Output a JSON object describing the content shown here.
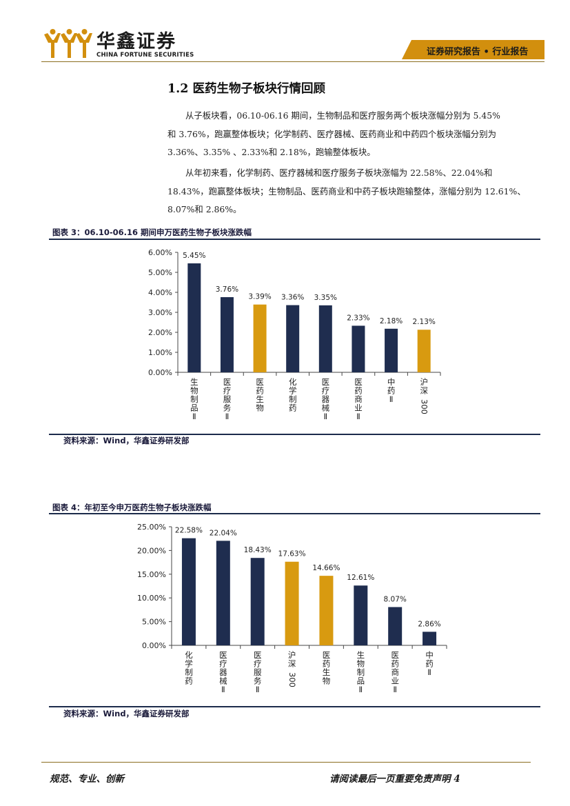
{
  "header": {
    "brand_cn": "华鑫证券",
    "brand_en": "CHINA FORTUNE SECURITIES",
    "report_type": "证券研究报告 • 行业报告",
    "accent_color": "#d28f0e"
  },
  "section": {
    "title": "1.2 医药生物子板块行情回顾",
    "para1_lines": [
      "从子板块看，06.10-06.16 期间，生物制品和医疗服务两个板块涨幅分别为 5.45%",
      "和 3.76%，跑赢整体板块；化学制药、医疗器械、医药商业和中药四个板块涨幅分别为",
      "3.36%、3.35% 、2.33%和 2.18%，跑输整体板块。"
    ],
    "para2_lines": [
      "从年初来看，化学制药、医疗器械和医疗服务子板块涨幅为 22.58%、22.04%和",
      "18.43%，跑赢整体板块；生物制品、医药商业和中药子板块跑输整体，涨幅分别为 12.61%、",
      "8.07%和 2.86%。"
    ]
  },
  "figure3": {
    "title": "图表 3：06.10-06.16 期间申万医药生物子板块涨跌幅",
    "source": "资料来源：Wind，华鑫证券研发部"
  },
  "figure4": {
    "title": "图表 4：年初至今申万医药生物子板块涨跌幅",
    "source": "资料来源：Wind，华鑫证券研发部"
  },
  "chart_data": [
    {
      "type": "bar",
      "categories": [
        "生物制品Ⅱ",
        "医疗服务Ⅱ",
        "医药生物",
        "化学制药",
        "医疗器械Ⅱ",
        "医药商业Ⅱ",
        "中药Ⅱ",
        "沪深300"
      ],
      "values": [
        5.45,
        3.76,
        3.39,
        3.36,
        3.35,
        2.33,
        2.18,
        2.13
      ],
      "value_labels": [
        "5.45%",
        "3.76%",
        "3.39%",
        "3.36%",
        "3.35%",
        "2.33%",
        "2.18%",
        "2.13%"
      ],
      "highlight": [
        false,
        false,
        true,
        false,
        false,
        false,
        false,
        true
      ],
      "ylim": [
        0,
        6
      ],
      "yticks": [
        0,
        1,
        2,
        3,
        4,
        5,
        6
      ],
      "ytick_labels": [
        "0.00%",
        "1.00%",
        "2.00%",
        "3.00%",
        "4.00%",
        "5.00%",
        "6.00%"
      ],
      "colors": {
        "default": "#1f2d4f",
        "highlight": "#d89a10"
      },
      "grid": false
    },
    {
      "type": "bar",
      "categories": [
        "化学制药",
        "医疗器械Ⅱ",
        "医疗服务Ⅱ",
        "沪深300",
        "医药生物",
        "生物制品Ⅱ",
        "医药商业Ⅱ",
        "中药Ⅱ"
      ],
      "values": [
        22.58,
        22.04,
        18.43,
        17.63,
        14.66,
        12.61,
        8.07,
        2.86
      ],
      "value_labels": [
        "22.58%",
        "22.04%",
        "18.43%",
        "17.63%",
        "14.66%",
        "12.61%",
        "8.07%",
        "2.86%"
      ],
      "highlight": [
        false,
        false,
        false,
        true,
        true,
        false,
        false,
        false
      ],
      "ylim": [
        0,
        25
      ],
      "yticks": [
        0,
        5,
        10,
        15,
        20,
        25
      ],
      "ytick_labels": [
        "0.00%",
        "5.00%",
        "10.00%",
        "15.00%",
        "20.00%",
        "25.00%"
      ],
      "colors": {
        "default": "#1f2d4f",
        "highlight": "#d89a10"
      },
      "grid": false
    }
  ],
  "footer": {
    "left": "规范、专业、创新",
    "right": "请阅读最后一页重要免责声明 4"
  }
}
